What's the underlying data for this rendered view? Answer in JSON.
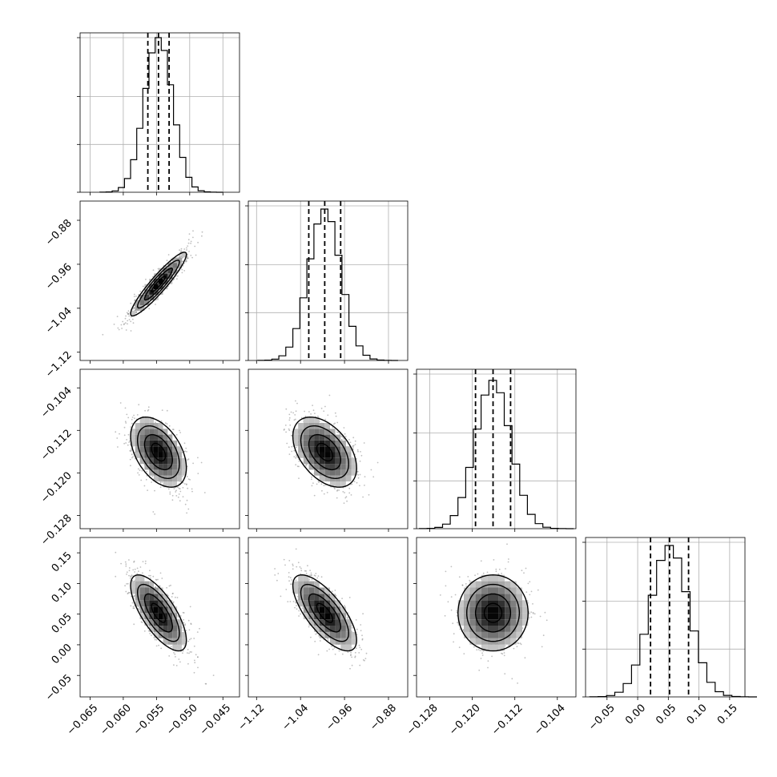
{
  "chart_data": {
    "type": "corner",
    "n_params": 4,
    "params": [
      {
        "range": [
          -0.0665,
          -0.0425
        ],
        "ticks": [
          -0.065,
          -0.06,
          -0.055,
          -0.05,
          -0.045
        ],
        "tick_labels": [
          "−0.065",
          "−0.060",
          "−0.055",
          "−0.050",
          "−0.045"
        ],
        "quantiles": [
          -0.0563,
          -0.0547,
          -0.0531
        ],
        "mean": -0.0547,
        "sd": 0.0021,
        "hist_peak": 0.97
      },
      {
        "range": [
          -1.135,
          -0.845
        ],
        "ticks": [
          -1.12,
          -1.04,
          -0.96,
          -0.88
        ],
        "tick_labels": [
          "−1.12",
          "−1.04",
          "−0.96",
          "−0.88"
        ],
        "quantiles": [
          -1.025,
          -0.996,
          -0.967
        ],
        "mean": -0.996,
        "sd": 0.029,
        "hist_peak": 0.95
      },
      {
        "range": [
          -0.1305,
          -0.1005
        ],
        "ticks": [
          -0.128,
          -0.12,
          -0.112,
          -0.104
        ],
        "tick_labels": [
          "−0.128",
          "−0.120",
          "−0.112",
          "−0.104"
        ],
        "quantiles": [
          -0.1194,
          -0.1161,
          -0.1128
        ],
        "mean": -0.1161,
        "sd": 0.0033,
        "hist_peak": 0.93
      },
      {
        "range": [
          -0.085,
          0.175
        ],
        "ticks": [
          -0.05,
          0.0,
          0.05,
          0.1,
          0.15
        ],
        "tick_labels": [
          "−0.05",
          "0.00",
          "0.05",
          "0.10",
          "0.15"
        ],
        "quantiles": [
          0.021,
          0.052,
          0.083
        ],
        "mean": 0.052,
        "sd": 0.031,
        "hist_peak": 0.95
      }
    ],
    "correlations": [
      {
        "i": 1,
        "j": 0,
        "rho": 0.93
      },
      {
        "i": 2,
        "j": 0,
        "rho": -0.45
      },
      {
        "i": 2,
        "j": 1,
        "rho": -0.45
      },
      {
        "i": 3,
        "j": 0,
        "rho": -0.72
      },
      {
        "i": 3,
        "j": 1,
        "rho": -0.72
      },
      {
        "i": 3,
        "j": 2,
        "rho": 0.0
      }
    ],
    "contour_levels_sigma": [
      0.5,
      1.0,
      1.5,
      2.0
    ],
    "quantile_line_style": "dashed",
    "grid": true,
    "colors": {
      "line": "#000000",
      "grid": "#b0b0b0",
      "density_dark": "#000000",
      "scatter": "#808080"
    }
  }
}
